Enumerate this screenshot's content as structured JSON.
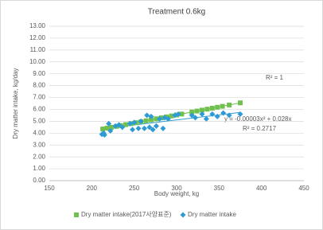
{
  "chart_data": {
    "type": "scatter",
    "title": "Treatment  0.6kg",
    "x_label": "Body weight, kg",
    "y_label": "Dry matter intake, kg/day",
    "xlim": [
      150,
      450
    ],
    "xticks": [
      150,
      200,
      250,
      300,
      350,
      400,
      450
    ],
    "ylim": [
      0,
      13
    ],
    "yticks": [
      {
        "value": 0,
        "label": "0.00"
      },
      {
        "value": 1,
        "label": "1.00"
      },
      {
        "value": 2,
        "label": "2.00"
      },
      {
        "value": 3,
        "label": "3.00"
      },
      {
        "value": 4,
        "label": "4.00"
      },
      {
        "value": 5,
        "label": "5.00"
      },
      {
        "value": 6,
        "label": "6.00"
      },
      {
        "value": 7,
        "label": "7.00"
      },
      {
        "value": 8,
        "label": "8.00"
      },
      {
        "value": 9,
        "label": "9.00"
      },
      {
        "value": 10,
        "label": "10.00"
      },
      {
        "value": 11,
        "label": "11.00"
      },
      {
        "value": 12,
        "label": "12.00"
      },
      {
        "value": 13,
        "label": "13.00"
      }
    ],
    "grid": true,
    "series": [
      {
        "name": "Dry matter intake(2017사양표준)",
        "color": "#70c050",
        "marker": "square",
        "x": [
          213,
          218,
          223,
          229,
          234,
          240,
          246,
          252,
          258,
          264,
          270,
          276,
          282,
          288,
          294,
          300,
          306,
          318,
          324,
          330,
          336,
          342,
          348,
          354,
          362,
          375
        ],
        "values": [
          4.35,
          4.42,
          4.49,
          4.57,
          4.64,
          4.72,
          4.8,
          4.88,
          4.96,
          5.04,
          5.12,
          5.21,
          5.29,
          5.37,
          5.45,
          5.53,
          5.61,
          5.78,
          5.86,
          5.94,
          6.02,
          6.1,
          6.18,
          6.26,
          6.37,
          6.55
        ]
      },
      {
        "name": "Dry matter intake",
        "color": "#2e9bd6",
        "marker": "diamond",
        "x": [
          212,
          214,
          215,
          220,
          222,
          228,
          232,
          236,
          245,
          248,
          250,
          255,
          258,
          262,
          265,
          268,
          270,
          272,
          276,
          280,
          284,
          286,
          290,
          298,
          302,
          318,
          322,
          330,
          335,
          342,
          348,
          355,
          362,
          375
        ],
        "values": [
          3.9,
          4.0,
          3.85,
          4.8,
          4.2,
          4.6,
          4.7,
          4.5,
          4.8,
          4.3,
          4.9,
          4.4,
          5.0,
          4.4,
          5.5,
          4.5,
          5.4,
          4.3,
          4.6,
          5.2,
          4.4,
          5.3,
          5.2,
          5.5,
          5.6,
          5.5,
          5.3,
          5.6,
          5.2,
          5.6,
          5.4,
          5.7,
          5.5,
          5.6
        ]
      }
    ],
    "trendlines": [
      {
        "color": "#70c050",
        "x": [
          213,
          375
        ],
        "values": [
          4.35,
          6.55
        ]
      },
      {
        "color": "#2e9bd6",
        "x": [
          210,
          375
        ],
        "values": [
          4.35,
          5.75
        ]
      }
    ],
    "annotations": [
      "R² = 1",
      "y = -0.00003x² + 0.028x",
      "R² = 0.2717"
    ]
  }
}
